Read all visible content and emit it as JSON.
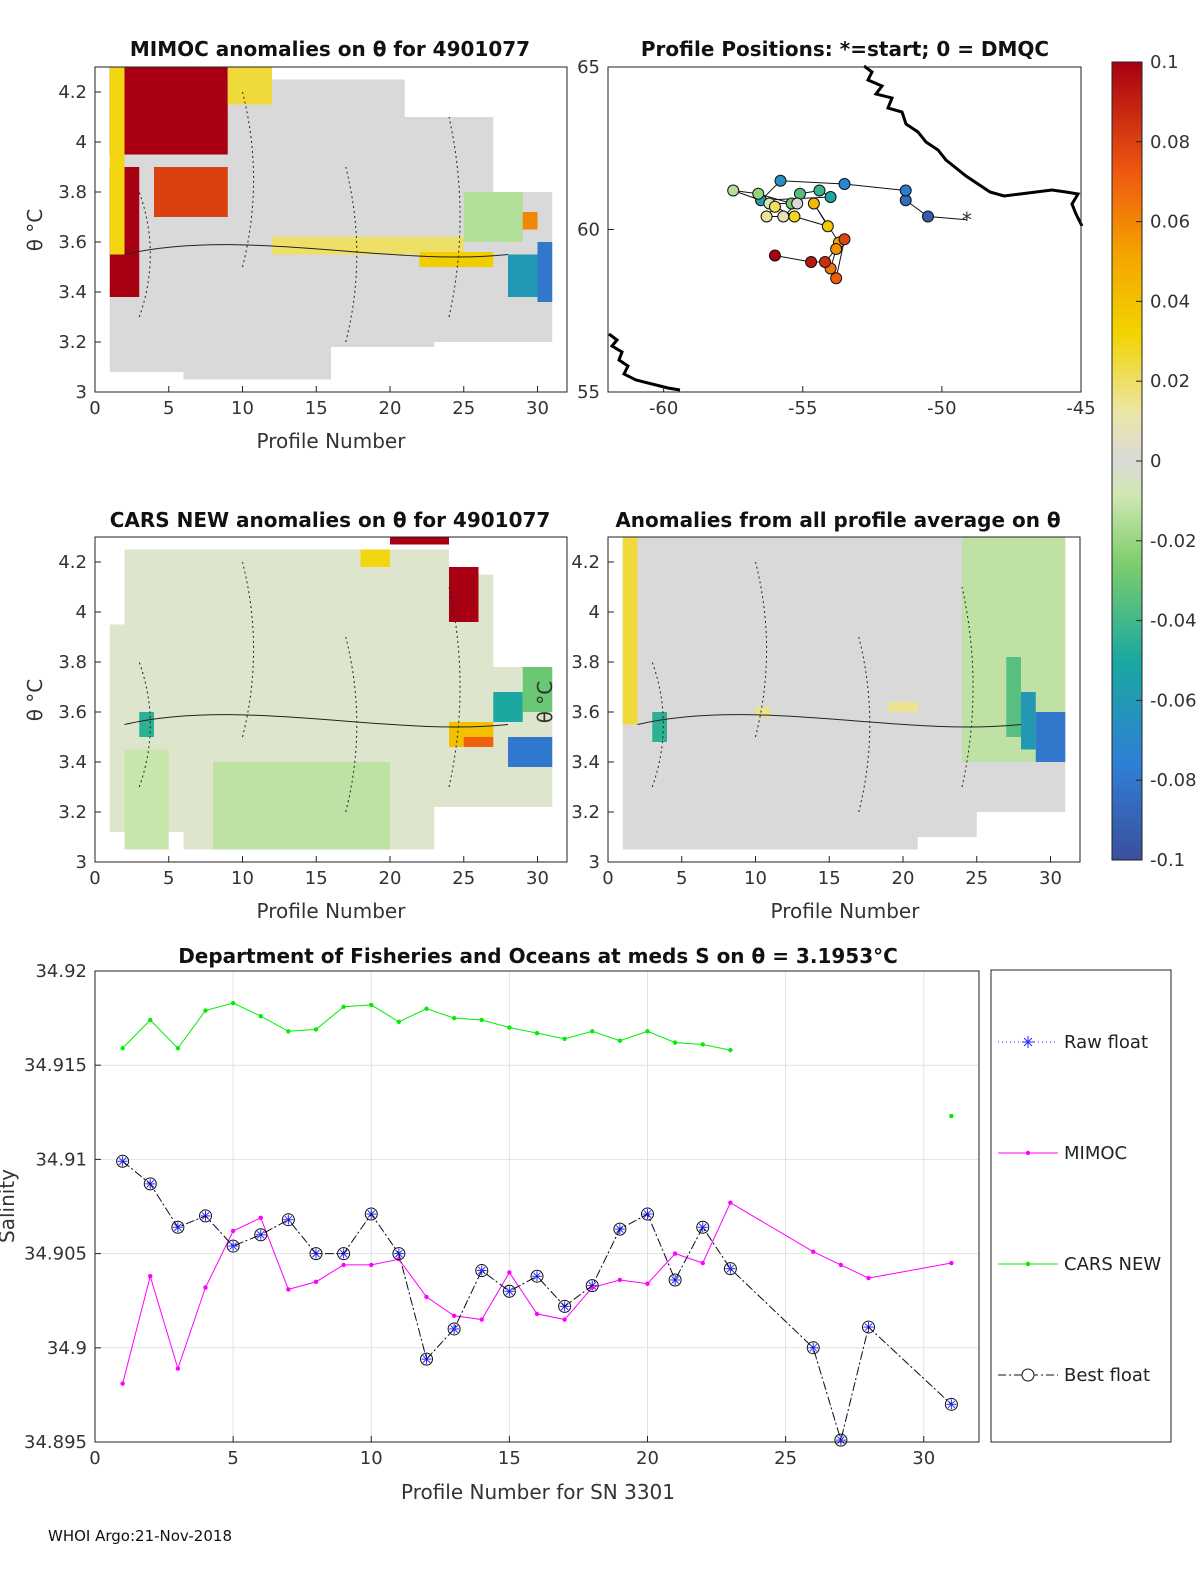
{
  "footer": "WHOI Argo:21-Nov-2018",
  "chart_data": [
    {
      "id": "mimoc-anom",
      "type": "heatmap",
      "title": "MIMOC anomalies on θ  for 4901077",
      "xlabel": "Profile Number",
      "ylabel": "θ °C",
      "xlim": [
        0,
        32
      ],
      "ylim": [
        3,
        4.3
      ],
      "xticks": [
        0,
        5,
        10,
        15,
        20,
        25,
        30
      ],
      "yticks": [
        3,
        3.2,
        3.4,
        3.6,
        3.8,
        4,
        4.2
      ],
      "ytick_labels": [
        "3",
        "3.2",
        "3.4",
        "3.6",
        "3.8",
        "4",
        "4.2"
      ],
      "regions": [
        {
          "x": [
            1,
            9
          ],
          "y": [
            3.95,
            4.3
          ],
          "v": 0.1
        },
        {
          "x": [
            1,
            3
          ],
          "y": [
            3.38,
            3.9
          ],
          "v": 0.1
        },
        {
          "x": [
            4,
            9
          ],
          "y": [
            3.7,
            3.9
          ],
          "v": 0.08
        },
        {
          "x": [
            1,
            2
          ],
          "y": [
            3.55,
            4.3
          ],
          "v": 0.03
        },
        {
          "x": [
            9,
            12
          ],
          "y": [
            4.15,
            4.3
          ],
          "v": 0.025
        },
        {
          "x": [
            12,
            25
          ],
          "y": [
            3.55,
            3.62
          ],
          "v": 0.02
        },
        {
          "x": [
            22,
            27
          ],
          "y": [
            3.5,
            3.56
          ],
          "v": 0.035
        },
        {
          "x": [
            26,
            30
          ],
          "y": [
            3.65,
            3.72
          ],
          "v": 0.06
        },
        {
          "x": [
            28,
            30
          ],
          "y": [
            3.38,
            3.55
          ],
          "v": -0.06
        },
        {
          "x": [
            30,
            31
          ],
          "y": [
            3.36,
            3.6
          ],
          "v": -0.08
        },
        {
          "x": [
            25,
            29
          ],
          "y": [
            3.6,
            3.8
          ],
          "v": -0.015
        }
      ]
    },
    {
      "id": "positions",
      "type": "scatter",
      "title": "Profile Positions: *=start; 0 = DMQC",
      "xlim": [
        -62,
        -45
      ],
      "ylim": [
        55,
        65
      ],
      "xticks": [
        -60,
        -55,
        -50,
        -45
      ],
      "yticks": [
        55,
        60,
        65
      ],
      "points": [
        [
          -49.1,
          60.3
        ],
        [
          -50.5,
          60.4
        ],
        [
          -51.3,
          60.9
        ],
        [
          -51.3,
          61.2
        ],
        [
          -53.5,
          61.4
        ],
        [
          -55.8,
          61.5
        ],
        [
          -56.5,
          60.9
        ],
        [
          -54.0,
          61.0
        ],
        [
          -54.4,
          61.2
        ],
        [
          -55.1,
          61.1
        ],
        [
          -55.4,
          60.8
        ],
        [
          -56.6,
          61.1
        ],
        [
          -57.5,
          61.2
        ],
        [
          -56.2,
          60.8
        ],
        [
          -55.2,
          60.8
        ],
        [
          -55.7,
          60.4
        ],
        [
          -56.3,
          60.4
        ],
        [
          -56.0,
          60.7
        ],
        [
          -55.3,
          60.4
        ],
        [
          -54.1,
          60.1
        ],
        [
          -54.6,
          60.8
        ],
        [
          -53.7,
          59.6
        ],
        [
          -53.8,
          59.4
        ],
        [
          -54.0,
          58.8
        ],
        [
          -53.8,
          58.5
        ],
        [
          -53.5,
          59.7
        ],
        [
          -54.2,
          59.0
        ],
        [
          -54.7,
          59.0
        ],
        [
          -56.0,
          59.2
        ]
      ],
      "start_marker": "*",
      "colorbar": {
        "min": -0.1,
        "max": 0.1,
        "ticks": [
          "0.1",
          "0.08",
          "0.06",
          "0.04",
          "0.02",
          "0",
          "-0.02",
          "-0.04",
          "-0.06",
          "-0.08",
          "-0.1"
        ]
      }
    },
    {
      "id": "cars-anom",
      "type": "heatmap",
      "title": "CARS NEW anomalies on θ for 4901077",
      "xlabel": "Profile Number",
      "ylabel": "θ °C",
      "xlim": [
        0,
        32
      ],
      "ylim": [
        3,
        4.3
      ],
      "xticks": [
        0,
        5,
        10,
        15,
        20,
        25,
        30
      ],
      "yticks": [
        3,
        3.2,
        3.4,
        3.6,
        3.8,
        4,
        4.2
      ],
      "ytick_labels": [
        "3",
        "3.2",
        "3.4",
        "3.6",
        "3.8",
        "4",
        "4.2"
      ],
      "regions": [
        {
          "x": [
            3,
            4
          ],
          "y": [
            3.5,
            3.6
          ],
          "v": -0.045
        },
        {
          "x": [
            2,
            5
          ],
          "y": [
            3.05,
            3.45
          ],
          "v": -0.01
        },
        {
          "x": [
            8,
            20
          ],
          "y": [
            3.05,
            3.4
          ],
          "v": -0.012
        },
        {
          "x": [
            18,
            20
          ],
          "y": [
            4.18,
            4.25
          ],
          "v": 0.03
        },
        {
          "x": [
            20,
            24
          ],
          "y": [
            4.27,
            4.3
          ],
          "v": 0.1
        },
        {
          "x": [
            24,
            26
          ],
          "y": [
            3.96,
            4.18
          ],
          "v": 0.1
        },
        {
          "x": [
            24,
            27
          ],
          "y": [
            3.46,
            3.56
          ],
          "v": 0.04
        },
        {
          "x": [
            25,
            27
          ],
          "y": [
            3.46,
            3.5
          ],
          "v": 0.07
        },
        {
          "x": [
            27,
            29
          ],
          "y": [
            3.56,
            3.68
          ],
          "v": -0.05
        },
        {
          "x": [
            28,
            31
          ],
          "y": [
            3.38,
            3.5
          ],
          "v": -0.08
        },
        {
          "x": [
            29,
            31
          ],
          "y": [
            3.6,
            3.78
          ],
          "v": -0.03
        }
      ]
    },
    {
      "id": "all-avg-anom",
      "type": "heatmap",
      "title": "Anomalies from all profile average on θ",
      "xlabel": "Profile Number",
      "ylabel": "θ °C",
      "xlim": [
        0,
        32
      ],
      "ylim": [
        3,
        4.3
      ],
      "xticks": [
        0,
        5,
        10,
        15,
        20,
        25,
        30
      ],
      "yticks": [
        3,
        3.2,
        3.4,
        3.6,
        3.8,
        4,
        4.2
      ],
      "ytick_labels": [
        "3",
        "3.2",
        "3.4",
        "3.6",
        "3.8",
        "4",
        "4.2"
      ],
      "regions": [
        {
          "x": [
            1,
            2
          ],
          "y": [
            3.55,
            4.3
          ],
          "v": 0.025
        },
        {
          "x": [
            3,
            4
          ],
          "y": [
            3.48,
            3.6
          ],
          "v": -0.045
        },
        {
          "x": [
            24,
            31
          ],
          "y": [
            3.4,
            4.3
          ],
          "v": -0.012
        },
        {
          "x": [
            27,
            28
          ],
          "y": [
            3.5,
            3.82
          ],
          "v": -0.035
        },
        {
          "x": [
            28,
            29
          ],
          "y": [
            3.45,
            3.68
          ],
          "v": -0.06
        },
        {
          "x": [
            29,
            31
          ],
          "y": [
            3.4,
            3.6
          ],
          "v": -0.08
        },
        {
          "x": [
            10,
            11
          ],
          "y": [
            3.58,
            3.62
          ],
          "v": 0.015
        },
        {
          "x": [
            19,
            21
          ],
          "y": [
            3.6,
            3.64
          ],
          "v": 0.015
        }
      ]
    },
    {
      "id": "salinity",
      "type": "line",
      "title": "Department of Fisheries and Oceans at meds S on θ = 3.1953°C",
      "xlabel": "Profile Number for SN 3301",
      "ylabel": "Salinity",
      "xlim": [
        0,
        32
      ],
      "ylim": [
        34.895,
        34.92
      ],
      "xticks": [
        0,
        5,
        10,
        15,
        20,
        25,
        30
      ],
      "yticks": [
        34.895,
        34.9,
        34.905,
        34.91,
        34.915,
        34.92
      ],
      "ytick_labels": [
        "34.895",
        "34.9",
        "34.905",
        "34.91",
        "34.915",
        "34.92"
      ],
      "grid": true,
      "series": [
        {
          "name": "Raw float",
          "color": "#2a2aff",
          "x": [
            1,
            2,
            3,
            4,
            5,
            6,
            7,
            8,
            9,
            10,
            11,
            12,
            13,
            14,
            15,
            16,
            17,
            18,
            19,
            20,
            21,
            22,
            23,
            26,
            27,
            28,
            31
          ],
          "y": [
            34.9099,
            34.9087,
            34.9064,
            34.907,
            34.9054,
            34.906,
            34.9068,
            34.905,
            34.905,
            34.9071,
            34.905,
            34.8994,
            34.901,
            34.9041,
            34.903,
            34.9038,
            34.9022,
            34.9033,
            34.9063,
            34.9071,
            34.9036,
            34.9064,
            34.9042,
            34.9,
            34.8951,
            34.9011,
            34.897
          ]
        },
        {
          "name": "MIMOC",
          "color": "#ff00ff",
          "x": [
            1,
            2,
            3,
            4,
            5,
            6,
            7,
            8,
            9,
            10,
            11,
            12,
            13,
            14,
            15,
            16,
            17,
            18,
            19,
            20,
            21,
            22,
            23,
            26,
            27,
            28,
            31
          ],
          "y": [
            34.8981,
            34.9038,
            34.8989,
            34.9032,
            34.9062,
            34.9069,
            34.9031,
            34.9035,
            34.9044,
            34.9044,
            34.9047,
            34.9027,
            34.9017,
            34.9015,
            34.904,
            34.9018,
            34.9015,
            34.9032,
            34.9036,
            34.9034,
            34.905,
            34.9045,
            34.9077,
            34.9051,
            34.9044,
            34.9037,
            34.9045
          ]
        },
        {
          "name": "CARS NEW",
          "color": "#00ee00",
          "x": [
            1,
            2,
            3,
            4,
            5,
            6,
            7,
            8,
            9,
            10,
            11,
            12,
            13,
            14,
            15,
            16,
            17,
            18,
            19,
            20,
            21,
            22,
            23,
            31
          ],
          "y": [
            34.9159,
            34.9174,
            34.9159,
            34.9179,
            34.9183,
            34.9176,
            34.9168,
            34.9169,
            34.9181,
            34.9182,
            34.9173,
            34.918,
            34.9175,
            34.9174,
            34.917,
            34.9167,
            34.9164,
            34.9168,
            34.9163,
            34.9168,
            34.9162,
            34.9161,
            34.9158,
            34.9123
          ],
          "break_before_x": 31
        },
        {
          "name": "Best float",
          "color": "#111111",
          "x": [
            1,
            2,
            3,
            4,
            5,
            6,
            7,
            8,
            9,
            10,
            11,
            12,
            13,
            14,
            15,
            16,
            17,
            18,
            19,
            20,
            21,
            22,
            23,
            26,
            27,
            28,
            31
          ],
          "y": [
            34.9099,
            34.9087,
            34.9064,
            34.907,
            34.9054,
            34.906,
            34.9068,
            34.905,
            34.905,
            34.9071,
            34.905,
            34.8994,
            34.901,
            34.9041,
            34.903,
            34.9038,
            34.9022,
            34.9033,
            34.9063,
            34.9071,
            34.9036,
            34.9064,
            34.9042,
            34.9,
            34.8951,
            34.9011,
            34.897
          ]
        }
      ],
      "legend_position": "right"
    }
  ]
}
